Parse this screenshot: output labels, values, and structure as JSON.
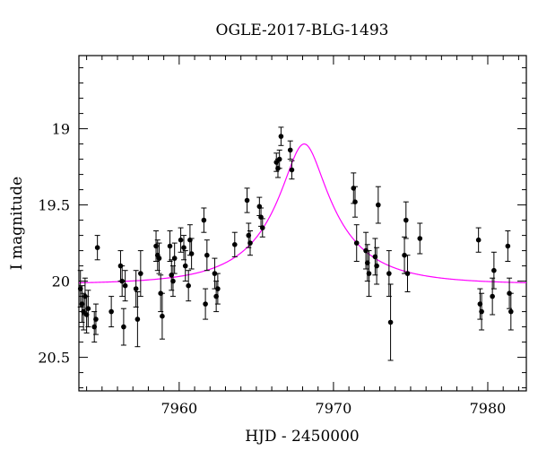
{
  "chart_data": {
    "type": "scatter",
    "title": "OGLE-2017-BLG-1493",
    "xlabel": "HJD - 2450000",
    "ylabel": "I magnitude",
    "xlim": [
      7953.5,
      7982.5
    ],
    "ylim": [
      20.72,
      18.52
    ],
    "y_inverted": true,
    "x_ticks": [
      7960,
      7970,
      7980
    ],
    "x_tick_labels": [
      "7960",
      "7970",
      "7980"
    ],
    "y_ticks": [
      19,
      19.5,
      20,
      20.5
    ],
    "y_tick_labels": [
      "19",
      "19.5",
      "20",
      "20.5"
    ],
    "grid": false,
    "marker_color": "#000000",
    "model_color": "#ff00ff",
    "model": {
      "name": "",
      "t0": 7968.1,
      "u0": 0.25,
      "tE": 5.1,
      "baseline_mag": 20.02,
      "peak_mag": 19.1
    },
    "series": [
      {
        "name": "",
        "x": [
          7953.6,
          7953.7,
          7953.8,
          7953.9,
          7954.0,
          7954.1,
          7954.5,
          7954.6,
          7954.7,
          7955.6,
          7956.2,
          7956.3,
          7956.4,
          7956.5,
          7957.2,
          7957.3,
          7957.5,
          7958.5,
          7958.6,
          7958.7,
          7958.8,
          7958.9,
          7959.4,
          7959.5,
          7959.6,
          7959.7,
          7960.1,
          7960.3,
          7960.4,
          7960.6,
          7960.7,
          7960.8,
          7961.6,
          7961.7,
          7961.8,
          7962.3,
          7962.4,
          7962.5,
          7963.6,
          7964.4,
          7964.5,
          7964.6,
          7965.2,
          7965.3,
          7965.4,
          7966.3,
          7966.4,
          7966.5,
          7966.6,
          7967.2,
          7967.3,
          7971.3,
          7971.4,
          7971.5,
          7972.1,
          7972.2,
          7972.3,
          7972.7,
          7972.8,
          7972.9,
          7973.6,
          7973.7,
          7974.6,
          7974.7,
          7974.8,
          7975.6,
          7979.4,
          7979.5,
          7979.6,
          7980.3,
          7980.4,
          7981.3,
          7981.4,
          7981.5
        ],
        "y": [
          20.05,
          20.15,
          20.2,
          20.1,
          20.22,
          20.18,
          20.3,
          20.25,
          19.78,
          20.2,
          19.9,
          20.0,
          20.3,
          20.03,
          20.05,
          20.25,
          19.95,
          19.77,
          19.83,
          19.85,
          20.08,
          20.23,
          19.77,
          19.96,
          20.0,
          19.85,
          19.73,
          19.78,
          19.9,
          20.03,
          19.73,
          19.82,
          19.6,
          20.15,
          19.83,
          19.95,
          20.1,
          20.05,
          19.76,
          19.47,
          19.7,
          19.75,
          19.51,
          19.58,
          19.65,
          19.22,
          19.26,
          19.2,
          19.05,
          19.14,
          19.27,
          19.39,
          19.48,
          19.75,
          19.8,
          19.88,
          19.95,
          19.84,
          19.9,
          19.5,
          19.95,
          20.27,
          19.83,
          19.6,
          19.95,
          19.72,
          19.73,
          20.15,
          20.2,
          20.1,
          19.93,
          19.77,
          20.08,
          20.2
        ],
        "errors": [
          0.12,
          0.12,
          0.12,
          0.12,
          0.12,
          0.12,
          0.1,
          0.1,
          0.08,
          0.1,
          0.1,
          0.1,
          0.12,
          0.1,
          0.12,
          0.18,
          0.15,
          0.1,
          0.1,
          0.1,
          0.12,
          0.15,
          0.1,
          0.1,
          0.1,
          0.1,
          0.08,
          0.08,
          0.1,
          0.1,
          0.1,
          0.1,
          0.08,
          0.1,
          0.1,
          0.1,
          0.1,
          0.1,
          0.08,
          0.08,
          0.08,
          0.08,
          0.06,
          0.06,
          0.06,
          0.06,
          0.06,
          0.06,
          0.06,
          0.06,
          0.06,
          0.1,
          0.1,
          0.12,
          0.12,
          0.12,
          0.15,
          0.12,
          0.12,
          0.12,
          0.15,
          0.25,
          0.12,
          0.12,
          0.12,
          0.1,
          0.08,
          0.1,
          0.12,
          0.12,
          0.12,
          0.1,
          0.1,
          0.12
        ]
      }
    ]
  }
}
